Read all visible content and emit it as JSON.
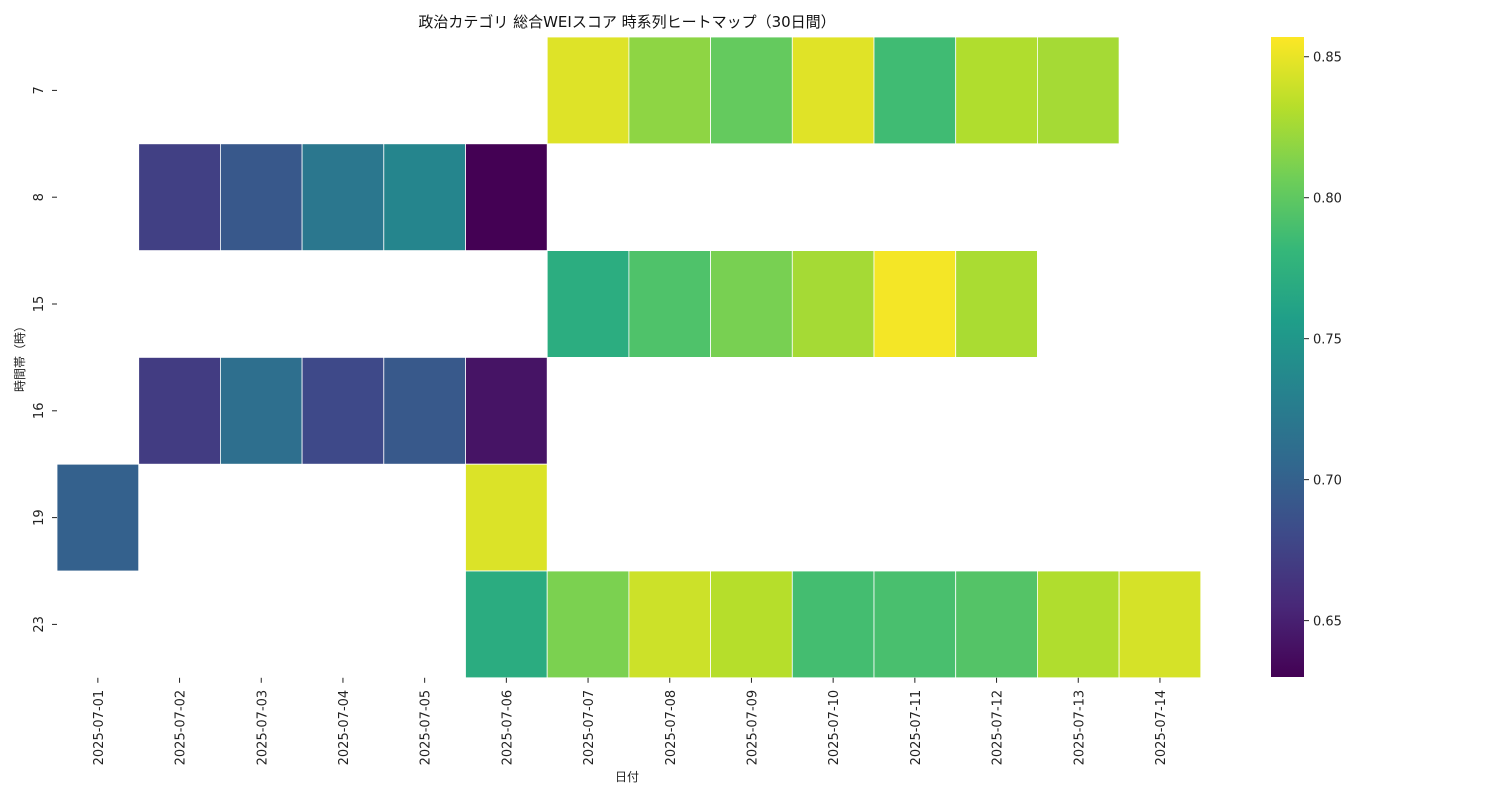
{
  "chart_data": {
    "type": "heatmap",
    "title": "政治カテゴリ 総合WEIスコア 時系列ヒートマップ（30日間）",
    "xlabel": "日付",
    "ylabel": "時間帯（時）",
    "x_categories": [
      "2025-07-01",
      "2025-07-02",
      "2025-07-03",
      "2025-07-04",
      "2025-07-05",
      "2025-07-06",
      "2025-07-07",
      "2025-07-08",
      "2025-07-09",
      "2025-07-10",
      "2025-07-11",
      "2025-07-12",
      "2025-07-13",
      "2025-07-14"
    ],
    "y_categories": [
      "7",
      "8",
      "15",
      "16",
      "19",
      "23"
    ],
    "values": [
      [
        null,
        null,
        null,
        null,
        null,
        null,
        0.846,
        0.818,
        0.802,
        0.847,
        0.786,
        0.83,
        0.826,
        null
      ],
      [
        null,
        0.673,
        0.692,
        0.72,
        0.734,
        0.63,
        null,
        null,
        null,
        null,
        null,
        null,
        null,
        null
      ],
      [
        null,
        null,
        null,
        null,
        null,
        null,
        0.771,
        0.793,
        0.81,
        0.826,
        0.854,
        0.828,
        null,
        null
      ],
      [
        null,
        0.67,
        0.712,
        0.68,
        0.693,
        0.642,
        null,
        null,
        null,
        null,
        null,
        null,
        null,
        null
      ],
      [
        0.7,
        null,
        null,
        null,
        null,
        0.845,
        null,
        null,
        null,
        null,
        null,
        null,
        null,
        null
      ],
      [
        null,
        null,
        null,
        null,
        null,
        0.77,
        0.811,
        0.84,
        0.832,
        0.788,
        0.79,
        0.795,
        0.83,
        0.843
      ]
    ],
    "colormap": "viridis",
    "vmin": 0.63,
    "vmax": 0.857,
    "colorbar_ticks": [
      "0.65",
      "0.70",
      "0.75",
      "0.80",
      "0.85"
    ],
    "colorbar_tick_values": [
      0.65,
      0.7,
      0.75,
      0.8,
      0.85
    ],
    "grid": false,
    "missing_cells": "blank"
  }
}
